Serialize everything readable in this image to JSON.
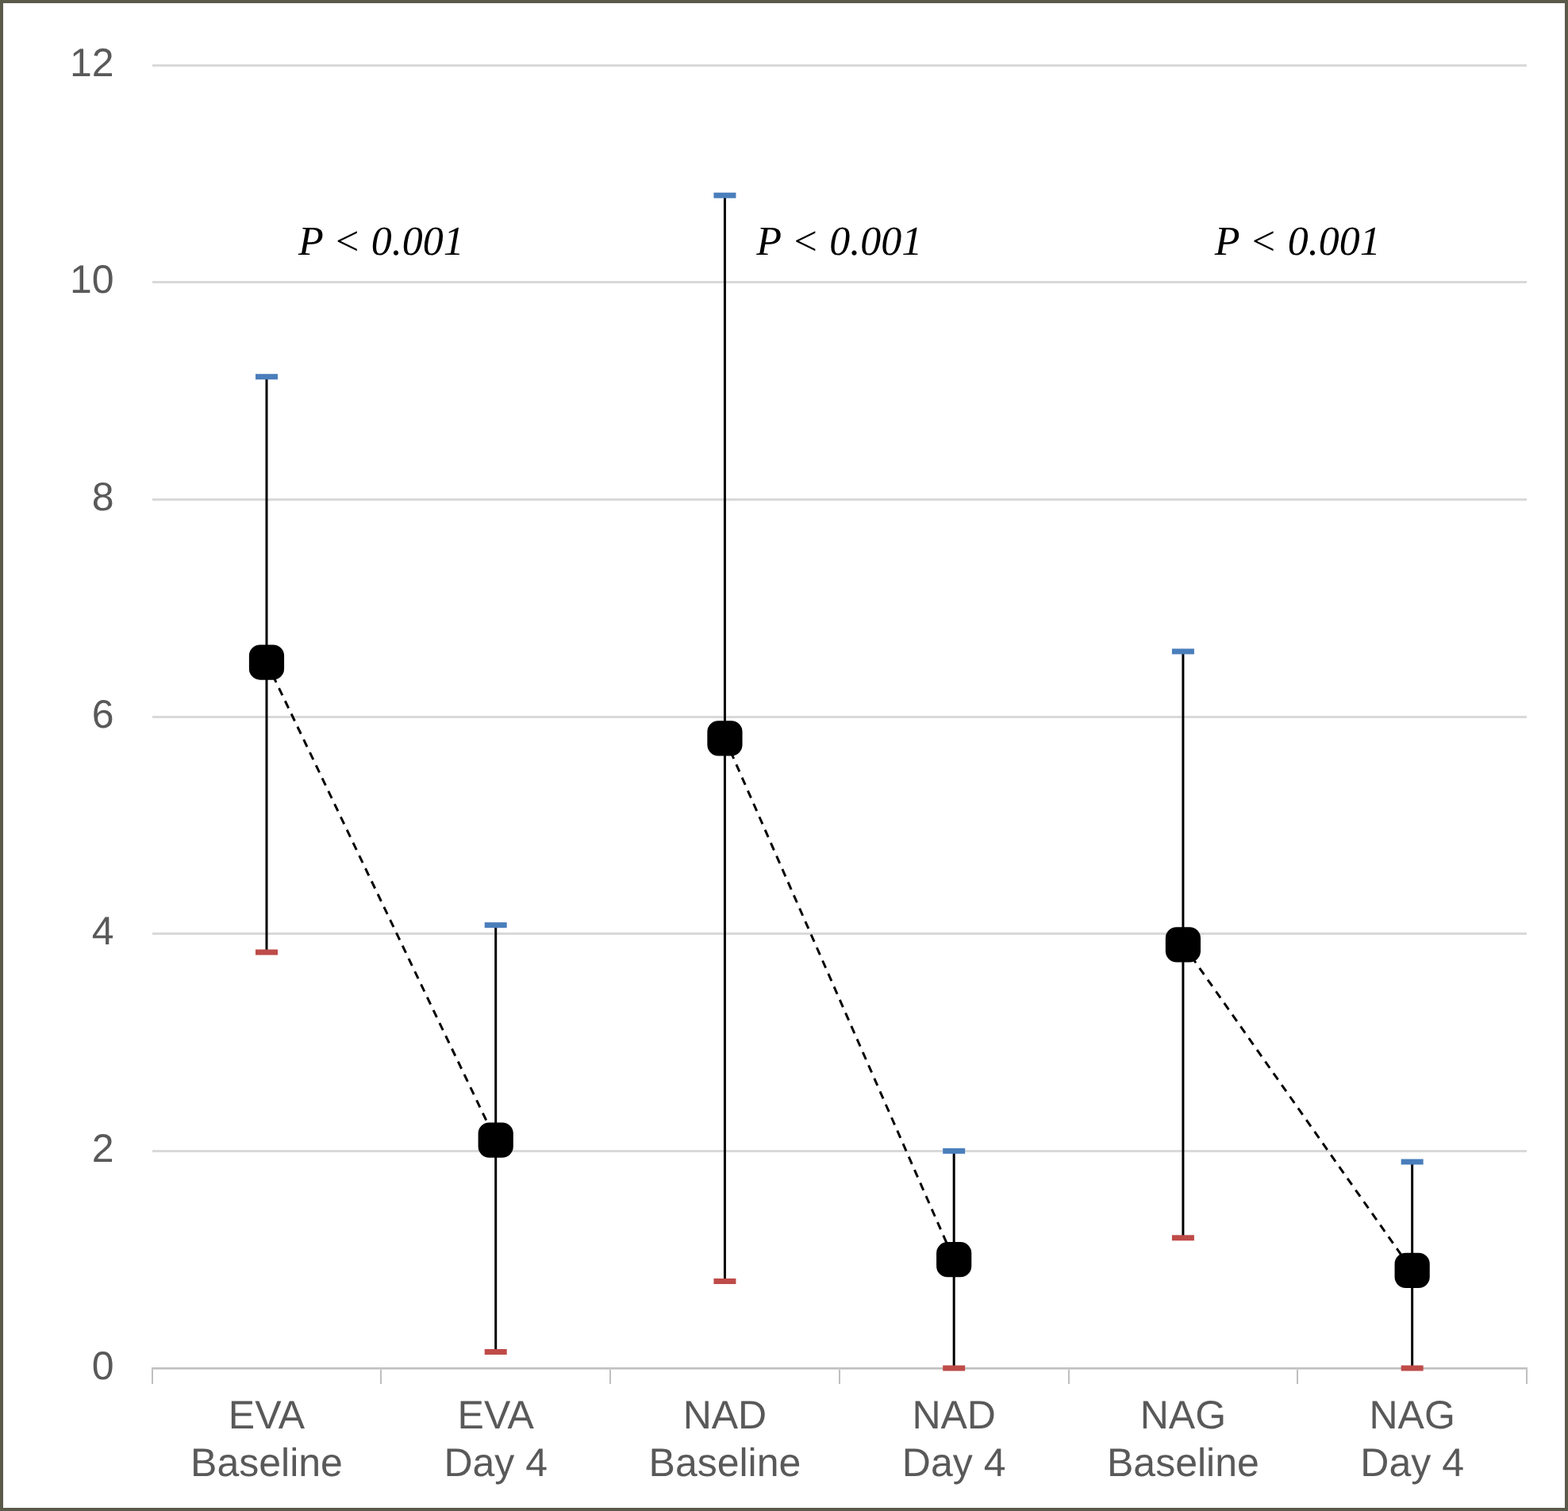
{
  "chart_data": {
    "type": "line",
    "categories": [
      "EVA Baseline",
      "EVA Day 4",
      "NAD Baseline",
      "NAD Day 4",
      "NAG Baseline",
      "NAG Day 4"
    ],
    "series": [
      {
        "color": "#000000",
        "values": [
          6.5,
          2.1,
          null,
          null,
          null,
          null
        ],
        "errors": [
          [
            3.83,
            9.13
          ],
          [
            0.15,
            4.08
          ],
          null,
          null,
          null,
          null
        ]
      },
      {
        "color": "#000000",
        "values": [
          null,
          null,
          5.8,
          1.0,
          null,
          null
        ],
        "errors": [
          null,
          null,
          [
            0.8,
            10.8
          ],
          [
            0,
            2.0
          ],
          null,
          null
        ]
      },
      {
        "color": "#000000",
        "values": [
          null,
          null,
          null,
          null,
          3.9,
          0.9
        ],
        "errors": [
          null,
          null,
          null,
          null,
          [
            1.2,
            6.6
          ],
          [
            0,
            1.9
          ]
        ]
      }
    ],
    "ylim": [
      0,
      12
    ],
    "yticks": [
      0,
      2,
      4,
      6,
      8,
      10,
      12
    ],
    "annotations": [
      "P < 0.001",
      "P < 0.001",
      "P < 0.001"
    ],
    "grid": "y",
    "legend": false,
    "marker": "square",
    "line_style": "dashed"
  }
}
